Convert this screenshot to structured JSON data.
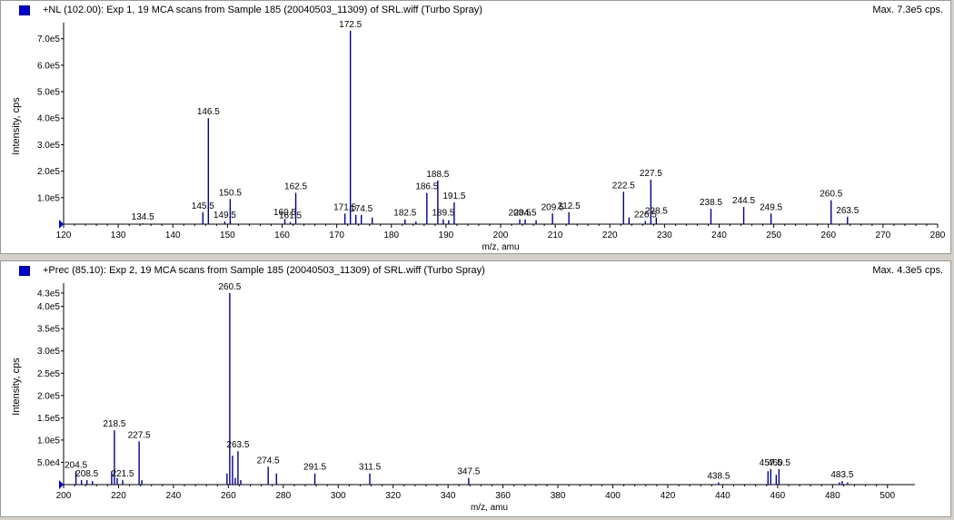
{
  "panels": [
    {
      "title": "+NL (102.00): Exp 1, 19 MCA scans from Sample 185 (20040503_11309) of SRL.wiff (Turbo Spray)",
      "max_label": "Max. 7.3e5 cps."
    },
    {
      "title": "+Prec (85.10): Exp 2, 19 MCA scans from Sample 185 (20040503_11309) of SRL.wiff (Turbo Spray)",
      "max_label": "Max. 4.3e5 cps."
    }
  ],
  "colors": {
    "peak": "#00008b",
    "axis": "#000000",
    "swatch": "#0000c8",
    "marker": "#0000cc"
  },
  "chart_data": [
    {
      "type": "bar",
      "title": "+NL (102.00): Exp 1, 19 MCA scans from Sample 185 (20040503_11309) of SRL.wiff (Turbo Spray)",
      "xlabel": "m/z, amu",
      "ylabel": "Intensity, cps",
      "xlim": [
        120,
        280
      ],
      "ylim": [
        0,
        740000
      ],
      "xticks": [
        120,
        130,
        140,
        150,
        160,
        170,
        180,
        190,
        200,
        210,
        220,
        230,
        240,
        250,
        260,
        270,
        280
      ],
      "yticks": [
        {
          "v": 100000,
          "label": "1.0e5"
        },
        {
          "v": 200000,
          "label": "2.0e5"
        },
        {
          "v": 300000,
          "label": "3.0e5"
        },
        {
          "v": 400000,
          "label": "4.0e5"
        },
        {
          "v": 500000,
          "label": "5.0e5"
        },
        {
          "v": 600000,
          "label": "6.0e5"
        },
        {
          "v": 700000,
          "label": "7.0e5"
        }
      ],
      "peaks": [
        {
          "x": 134.5,
          "y": 3000,
          "label": "134.5"
        },
        {
          "x": 145.5,
          "y": 45000,
          "label": "145.5"
        },
        {
          "x": 146.5,
          "y": 400000,
          "label": "146.5"
        },
        {
          "x": 149.5,
          "y": 10000,
          "label": "149.5"
        },
        {
          "x": 150.5,
          "y": 95000,
          "label": "150.5"
        },
        {
          "x": 160.5,
          "y": 20000,
          "label": "160.5"
        },
        {
          "x": 161.5,
          "y": 8000,
          "label": "161.5"
        },
        {
          "x": 162.5,
          "y": 118000,
          "label": "162.5"
        },
        {
          "x": 171.5,
          "y": 40000,
          "label": "171.5"
        },
        {
          "x": 172.5,
          "y": 730000,
          "label": "172.5"
        },
        {
          "x": 173.5,
          "y": 35000,
          "label": ""
        },
        {
          "x": 174.5,
          "y": 35000,
          "label": "174.5"
        },
        {
          "x": 176.5,
          "y": 25000,
          "label": ""
        },
        {
          "x": 182.5,
          "y": 18000,
          "label": "182.5"
        },
        {
          "x": 184.5,
          "y": 10000,
          "label": ""
        },
        {
          "x": 186.5,
          "y": 118000,
          "label": "186.5"
        },
        {
          "x": 188.5,
          "y": 165000,
          "label": "188.5"
        },
        {
          "x": 189.5,
          "y": 18000,
          "label": "189.5"
        },
        {
          "x": 190.5,
          "y": 15000,
          "label": ""
        },
        {
          "x": 191.5,
          "y": 82000,
          "label": "191.5"
        },
        {
          "x": 203.5,
          "y": 18000,
          "label": "203.5"
        },
        {
          "x": 204.5,
          "y": 18000,
          "label": "204.5"
        },
        {
          "x": 206.5,
          "y": 15000,
          "label": ""
        },
        {
          "x": 209.5,
          "y": 40000,
          "label": "209.5"
        },
        {
          "x": 212.5,
          "y": 45000,
          "label": "212.5"
        },
        {
          "x": 222.5,
          "y": 122000,
          "label": "222.5"
        },
        {
          "x": 223.5,
          "y": 25000,
          "label": ""
        },
        {
          "x": 226.5,
          "y": 12000,
          "label": "226.5"
        },
        {
          "x": 227.5,
          "y": 168000,
          "label": "227.5"
        },
        {
          "x": 228.5,
          "y": 25000,
          "label": "228.5"
        },
        {
          "x": 238.5,
          "y": 58000,
          "label": "238.5"
        },
        {
          "x": 244.5,
          "y": 65000,
          "label": "244.5"
        },
        {
          "x": 249.5,
          "y": 40000,
          "label": "249.5"
        },
        {
          "x": 260.5,
          "y": 90000,
          "label": "260.5"
        },
        {
          "x": 263.5,
          "y": 28000,
          "label": "263.5"
        }
      ]
    },
    {
      "type": "bar",
      "title": "+Prec (85.10): Exp 2, 19 MCA scans from Sample 185 (20040503_11309) of SRL.wiff (Turbo Spray)",
      "xlabel": "m/z, amu",
      "ylabel": "Intensity, cps",
      "xlim": [
        200,
        510
      ],
      "ylim": [
        0,
        440000
      ],
      "xticks": [
        200,
        220,
        240,
        260,
        280,
        300,
        320,
        340,
        360,
        380,
        400,
        420,
        440,
        460,
        480,
        500
      ],
      "yticks": [
        {
          "v": 50000,
          "label": "5.0e4"
        },
        {
          "v": 100000,
          "label": "1.0e5"
        },
        {
          "v": 150000,
          "label": "1.5e5"
        },
        {
          "v": 200000,
          "label": "2.0e5"
        },
        {
          "v": 250000,
          "label": "2.5e5"
        },
        {
          "v": 300000,
          "label": "3.0e5"
        },
        {
          "v": 350000,
          "label": "3.5e5"
        },
        {
          "v": 400000,
          "label": "4.0e5"
        },
        {
          "v": 430000,
          "label": "4.3e5"
        }
      ],
      "peaks": [
        {
          "x": 204.5,
          "y": 30000,
          "label": "204.5"
        },
        {
          "x": 206.5,
          "y": 10000,
          "label": ""
        },
        {
          "x": 208.5,
          "y": 10000,
          "label": "208.5"
        },
        {
          "x": 210.5,
          "y": 8000,
          "label": ""
        },
        {
          "x": 217.5,
          "y": 30000,
          "label": ""
        },
        {
          "x": 218.5,
          "y": 122000,
          "label": "218.5"
        },
        {
          "x": 219.5,
          "y": 15000,
          "label": ""
        },
        {
          "x": 221.5,
          "y": 10000,
          "label": "221.5"
        },
        {
          "x": 227.5,
          "y": 97000,
          "label": "227.5"
        },
        {
          "x": 228.5,
          "y": 10000,
          "label": ""
        },
        {
          "x": 259.5,
          "y": 25000,
          "label": ""
        },
        {
          "x": 260.5,
          "y": 430000,
          "label": "260.5"
        },
        {
          "x": 261.5,
          "y": 65000,
          "label": ""
        },
        {
          "x": 262.5,
          "y": 15000,
          "label": ""
        },
        {
          "x": 263.5,
          "y": 75000,
          "label": "263.5"
        },
        {
          "x": 264.5,
          "y": 10000,
          "label": ""
        },
        {
          "x": 274.5,
          "y": 40000,
          "label": "274.5"
        },
        {
          "x": 277.5,
          "y": 25000,
          "label": ""
        },
        {
          "x": 291.5,
          "y": 25000,
          "label": "291.5"
        },
        {
          "x": 311.5,
          "y": 25000,
          "label": "311.5"
        },
        {
          "x": 347.5,
          "y": 15000,
          "label": "347.5"
        },
        {
          "x": 438.5,
          "y": 5000,
          "label": "438.5"
        },
        {
          "x": 456.5,
          "y": 30000,
          "label": ""
        },
        {
          "x": 457.5,
          "y": 35000,
          "label": "457.5"
        },
        {
          "x": 459.5,
          "y": 22000,
          "label": ""
        },
        {
          "x": 460.5,
          "y": 35000,
          "label": "460.5"
        },
        {
          "x": 482.5,
          "y": 5000,
          "label": ""
        },
        {
          "x": 483.5,
          "y": 8000,
          "label": "483.5"
        },
        {
          "x": 485.5,
          "y": 5000,
          "label": ""
        }
      ]
    }
  ]
}
